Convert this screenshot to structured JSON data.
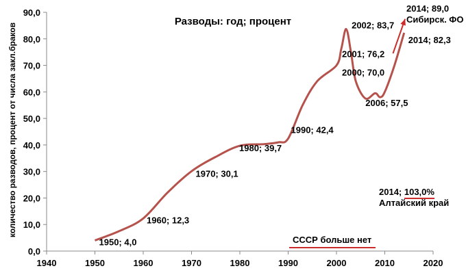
{
  "chart_data": {
    "type": "line",
    "title": "Разводы: год; процент",
    "xlabel": "",
    "ylabel": "количество разводов, процент от числа закл.браков",
    "xlim": [
      1940,
      2020
    ],
    "ylim": [
      0,
      90
    ],
    "x_ticks": [
      "1940",
      "1950",
      "1960",
      "1970",
      "1980",
      "1990",
      "2000",
      "2010",
      "2020"
    ],
    "y_ticks": [
      "0,0",
      "10,0",
      "20,0",
      "30,0",
      "40,0",
      "50,0",
      "60,0",
      "70,0",
      "80,0",
      "90,0"
    ],
    "grid": false,
    "series_color": "#b5524c",
    "series": [
      {
        "x": [
          1950,
          1955,
          1960,
          1965,
          1970,
          1975,
          1980,
          1985,
          1988,
          1990,
          1993,
          1996,
          2000,
          2001,
          2002,
          2003,
          2004,
          2006,
          2008,
          2009,
          2010,
          2012,
          2014
        ],
        "y": [
          4.0,
          7.5,
          12.3,
          22.0,
          30.1,
          35.5,
          39.7,
          40.3,
          41.0,
          42.4,
          55.0,
          64.0,
          70.0,
          76.2,
          83.7,
          75.0,
          64.0,
          57.5,
          59.5,
          58.0,
          60.0,
          70.0,
          82.3
        ]
      }
    ],
    "point_labels": [
      {
        "x": 1950,
        "y": 4.0,
        "text": "1950; 4,0"
      },
      {
        "x": 1960,
        "y": 12.3,
        "text": "1960; 12,3"
      },
      {
        "x": 1970,
        "y": 30.1,
        "text": "1970; 30,1"
      },
      {
        "x": 1980,
        "y": 39.7,
        "text": "1980; 39,7"
      },
      {
        "x": 1990,
        "y": 42.4,
        "text": "1990; 42,4"
      },
      {
        "x": 2000,
        "y": 70.0,
        "text": "2000; 70,0"
      },
      {
        "x": 2001,
        "y": 76.2,
        "text": "2001; 76,2"
      },
      {
        "x": 2002,
        "y": 83.7,
        "text": "2002; 83,7"
      },
      {
        "x": 2006,
        "y": 57.5,
        "text": "2006; 57,5"
      },
      {
        "x": 2014,
        "y": 82.3,
        "text": "2014; 82,3"
      }
    ],
    "annotations": {
      "siberia_value": "2014; 89,0",
      "siberia_label": "Сибирск. ФО",
      "altai_value": "2014; 103,0%",
      "altai_label": "Алтайский край",
      "ussr": "СССР больше нет"
    }
  }
}
